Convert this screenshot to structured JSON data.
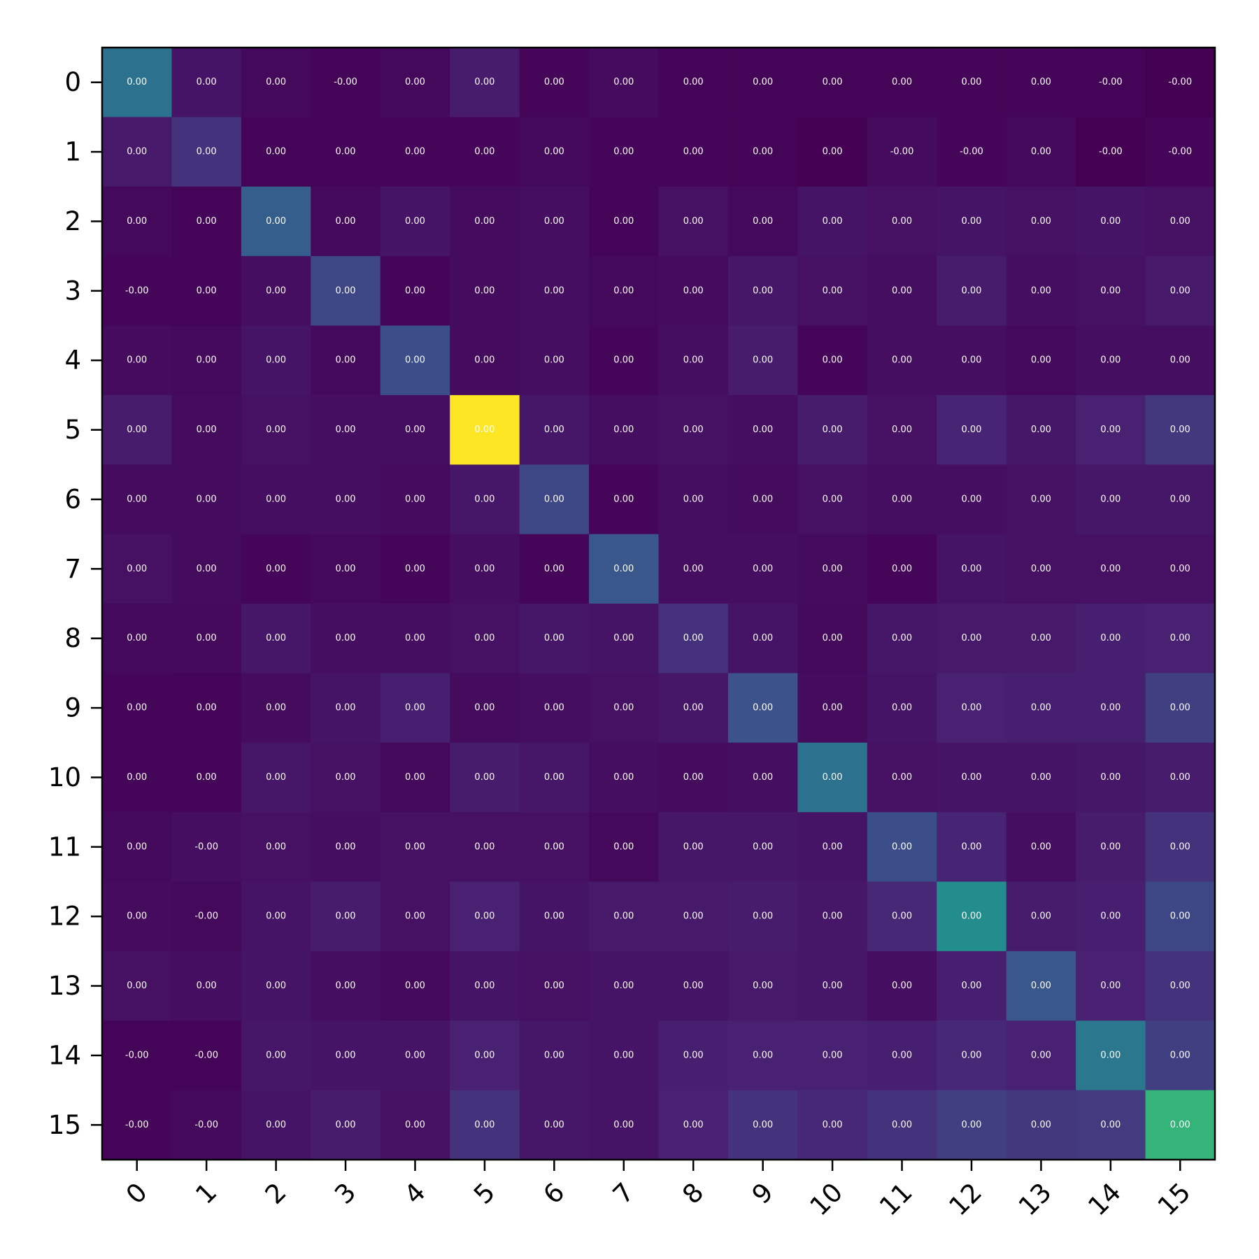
{
  "chart_data": {
    "type": "heatmap",
    "title": "",
    "xlabel": "",
    "ylabel": "",
    "colormap": "viridis",
    "x_categories": [
      "0",
      "1",
      "2",
      "3",
      "4",
      "5",
      "6",
      "7",
      "8",
      "9",
      "10",
      "11",
      "12",
      "13",
      "14",
      "15"
    ],
    "y_categories": [
      "0",
      "1",
      "2",
      "3",
      "4",
      "5",
      "6",
      "7",
      "8",
      "9",
      "10",
      "11",
      "12",
      "13",
      "14",
      "15"
    ],
    "color_range": [
      0,
      1
    ],
    "x_tick_rotation_deg": 45,
    "grid": false,
    "intensity": [
      [
        0.38,
        0.07,
        0.03,
        0.01,
        0.03,
        0.1,
        0.02,
        0.04,
        0.01,
        0.01,
        0.01,
        0.01,
        0.02,
        0.02,
        0.01,
        0.0
      ],
      [
        0.09,
        0.17,
        0.01,
        0.01,
        0.02,
        0.02,
        0.03,
        0.02,
        0.01,
        0.01,
        0.0,
        0.04,
        0.02,
        0.03,
        0.0,
        0.02
      ],
      [
        0.03,
        0.01,
        0.3,
        0.03,
        0.07,
        0.04,
        0.05,
        0.01,
        0.06,
        0.03,
        0.07,
        0.06,
        0.07,
        0.06,
        0.07,
        0.06
      ],
      [
        0.02,
        0.01,
        0.05,
        0.22,
        0.02,
        0.04,
        0.05,
        0.03,
        0.04,
        0.08,
        0.06,
        0.05,
        0.1,
        0.05,
        0.06,
        0.09
      ],
      [
        0.04,
        0.03,
        0.07,
        0.03,
        0.24,
        0.04,
        0.05,
        0.02,
        0.05,
        0.1,
        0.02,
        0.05,
        0.05,
        0.03,
        0.05,
        0.05
      ],
      [
        0.1,
        0.04,
        0.06,
        0.05,
        0.05,
        1.0,
        0.08,
        0.05,
        0.06,
        0.05,
        0.1,
        0.06,
        0.13,
        0.08,
        0.12,
        0.18
      ],
      [
        0.04,
        0.04,
        0.05,
        0.05,
        0.04,
        0.08,
        0.22,
        0.02,
        0.05,
        0.04,
        0.06,
        0.05,
        0.05,
        0.06,
        0.08,
        0.08
      ],
      [
        0.06,
        0.04,
        0.02,
        0.03,
        0.02,
        0.05,
        0.02,
        0.27,
        0.05,
        0.05,
        0.04,
        0.02,
        0.07,
        0.06,
        0.06,
        0.06
      ],
      [
        0.03,
        0.03,
        0.08,
        0.05,
        0.05,
        0.06,
        0.08,
        0.07,
        0.16,
        0.07,
        0.03,
        0.08,
        0.09,
        0.09,
        0.11,
        0.12
      ],
      [
        0.02,
        0.01,
        0.04,
        0.07,
        0.11,
        0.04,
        0.05,
        0.06,
        0.08,
        0.25,
        0.04,
        0.07,
        0.12,
        0.11,
        0.11,
        0.2
      ],
      [
        0.02,
        0.01,
        0.08,
        0.06,
        0.03,
        0.1,
        0.08,
        0.05,
        0.04,
        0.05,
        0.38,
        0.06,
        0.07,
        0.07,
        0.08,
        0.1
      ],
      [
        0.03,
        0.05,
        0.06,
        0.05,
        0.06,
        0.06,
        0.06,
        0.03,
        0.08,
        0.08,
        0.07,
        0.24,
        0.13,
        0.05,
        0.1,
        0.17
      ],
      [
        0.04,
        0.03,
        0.07,
        0.1,
        0.06,
        0.12,
        0.07,
        0.09,
        0.09,
        0.1,
        0.08,
        0.14,
        0.48,
        0.1,
        0.11,
        0.22
      ],
      [
        0.06,
        0.05,
        0.07,
        0.05,
        0.03,
        0.07,
        0.06,
        0.07,
        0.07,
        0.09,
        0.08,
        0.05,
        0.11,
        0.27,
        0.12,
        0.17
      ],
      [
        0.01,
        0.01,
        0.08,
        0.07,
        0.07,
        0.12,
        0.08,
        0.07,
        0.11,
        0.12,
        0.12,
        0.11,
        0.14,
        0.12,
        0.4,
        0.2
      ],
      [
        0.02,
        0.03,
        0.07,
        0.1,
        0.06,
        0.17,
        0.08,
        0.07,
        0.12,
        0.17,
        0.14,
        0.17,
        0.2,
        0.18,
        0.19,
        0.66
      ]
    ],
    "cell_labels": [
      [
        "0.00",
        "0.00",
        "0.00",
        "-0.00",
        "0.00",
        "0.00",
        "0.00",
        "0.00",
        "0.00",
        "0.00",
        "0.00",
        "0.00",
        "0.00",
        "0.00",
        "-0.00",
        "-0.00"
      ],
      [
        "0.00",
        "0.00",
        "0.00",
        "0.00",
        "0.00",
        "0.00",
        "0.00",
        "0.00",
        "0.00",
        "0.00",
        "0.00",
        "-0.00",
        "-0.00",
        "0.00",
        "-0.00",
        "-0.00"
      ],
      [
        "0.00",
        "0.00",
        "0.00",
        "0.00",
        "0.00",
        "0.00",
        "0.00",
        "0.00",
        "0.00",
        "0.00",
        "0.00",
        "0.00",
        "0.00",
        "0.00",
        "0.00",
        "0.00"
      ],
      [
        "-0.00",
        "0.00",
        "0.00",
        "0.00",
        "0.00",
        "0.00",
        "0.00",
        "0.00",
        "0.00",
        "0.00",
        "0.00",
        "0.00",
        "0.00",
        "0.00",
        "0.00",
        "0.00"
      ],
      [
        "0.00",
        "0.00",
        "0.00",
        "0.00",
        "0.00",
        "0.00",
        "0.00",
        "0.00",
        "0.00",
        "0.00",
        "0.00",
        "0.00",
        "0.00",
        "0.00",
        "0.00",
        "0.00"
      ],
      [
        "0.00",
        "0.00",
        "0.00",
        "0.00",
        "0.00",
        "0.00",
        "0.00",
        "0.00",
        "0.00",
        "0.00",
        "0.00",
        "0.00",
        "0.00",
        "0.00",
        "0.00",
        "0.00"
      ],
      [
        "0.00",
        "0.00",
        "0.00",
        "0.00",
        "0.00",
        "0.00",
        "0.00",
        "0.00",
        "0.00",
        "0.00",
        "0.00",
        "0.00",
        "0.00",
        "0.00",
        "0.00",
        "0.00"
      ],
      [
        "0.00",
        "0.00",
        "0.00",
        "0.00",
        "0.00",
        "0.00",
        "0.00",
        "0.00",
        "0.00",
        "0.00",
        "0.00",
        "0.00",
        "0.00",
        "0.00",
        "0.00",
        "0.00"
      ],
      [
        "0.00",
        "0.00",
        "0.00",
        "0.00",
        "0.00",
        "0.00",
        "0.00",
        "0.00",
        "0.00",
        "0.00",
        "0.00",
        "0.00",
        "0.00",
        "0.00",
        "0.00",
        "0.00"
      ],
      [
        "0.00",
        "0.00",
        "0.00",
        "0.00",
        "0.00",
        "0.00",
        "0.00",
        "0.00",
        "0.00",
        "0.00",
        "0.00",
        "0.00",
        "0.00",
        "0.00",
        "0.00",
        "0.00"
      ],
      [
        "0.00",
        "0.00",
        "0.00",
        "0.00",
        "0.00",
        "0.00",
        "0.00",
        "0.00",
        "0.00",
        "0.00",
        "0.00",
        "0.00",
        "0.00",
        "0.00",
        "0.00",
        "0.00"
      ],
      [
        "0.00",
        "-0.00",
        "0.00",
        "0.00",
        "0.00",
        "0.00",
        "0.00",
        "0.00",
        "0.00",
        "0.00",
        "0.00",
        "0.00",
        "0.00",
        "0.00",
        "0.00",
        "0.00"
      ],
      [
        "0.00",
        "-0.00",
        "0.00",
        "0.00",
        "0.00",
        "0.00",
        "0.00",
        "0.00",
        "0.00",
        "0.00",
        "0.00",
        "0.00",
        "0.00",
        "0.00",
        "0.00",
        "0.00"
      ],
      [
        "0.00",
        "0.00",
        "0.00",
        "0.00",
        "0.00",
        "0.00",
        "0.00",
        "0.00",
        "0.00",
        "0.00",
        "0.00",
        "0.00",
        "0.00",
        "0.00",
        "0.00",
        "0.00"
      ],
      [
        "-0.00",
        "-0.00",
        "0.00",
        "0.00",
        "0.00",
        "0.00",
        "0.00",
        "0.00",
        "0.00",
        "0.00",
        "0.00",
        "0.00",
        "0.00",
        "0.00",
        "0.00",
        "0.00"
      ],
      [
        "-0.00",
        "-0.00",
        "0.00",
        "0.00",
        "0.00",
        "0.00",
        "0.00",
        "0.00",
        "0.00",
        "0.00",
        "0.00",
        "0.00",
        "0.00",
        "0.00",
        "0.00",
        "0.00"
      ]
    ]
  }
}
